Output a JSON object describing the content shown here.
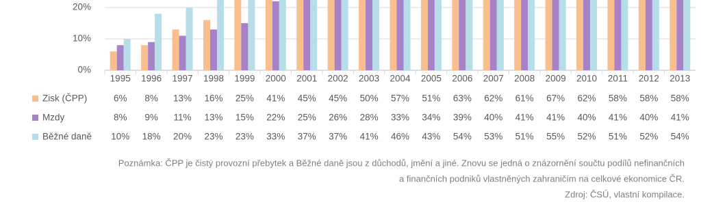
{
  "chart_data": {
    "type": "bar",
    "categories": [
      "1995",
      "1996",
      "1997",
      "1998",
      "1999",
      "2000",
      "2001",
      "2002",
      "2003",
      "2004",
      "2005",
      "2006",
      "2007",
      "2008",
      "2009",
      "2010",
      "2011",
      "2012",
      "2013"
    ],
    "series": [
      {
        "name": "Zisk (ČPP)",
        "color": "#f9bf8f",
        "values": [
          6,
          8,
          13,
          16,
          25,
          41,
          45,
          45,
          50,
          57,
          51,
          63,
          62,
          61,
          67,
          62,
          58,
          58,
          58
        ],
        "value_labels": [
          "6%",
          "8%",
          "13%",
          "16%",
          "25%",
          "41%",
          "45%",
          "45%",
          "50%",
          "57%",
          "51%",
          "63%",
          "62%",
          "61%",
          "67%",
          "62%",
          "58%",
          "58%",
          "58%"
        ]
      },
      {
        "name": "Mzdy",
        "color": "#a782c8",
        "values": [
          8,
          9,
          11,
          13,
          15,
          22,
          25,
          26,
          28,
          33,
          34,
          39,
          40,
          41,
          41,
          40,
          41,
          40,
          41
        ],
        "value_labels": [
          "8%",
          "9%",
          "11%",
          "13%",
          "15%",
          "22%",
          "25%",
          "26%",
          "28%",
          "33%",
          "34%",
          "39%",
          "40%",
          "41%",
          "41%",
          "40%",
          "41%",
          "40%",
          "41%"
        ]
      },
      {
        "name": "Běžné daně",
        "color": "#b7dde8",
        "values": [
          10,
          18,
          20,
          23,
          23,
          33,
          37,
          37,
          41,
          46,
          43,
          54,
          53,
          51,
          55,
          52,
          51,
          52,
          54
        ],
        "value_labels": [
          "10%",
          "18%",
          "20%",
          "23%",
          "23%",
          "33%",
          "37%",
          "37%",
          "41%",
          "46%",
          "43%",
          "54%",
          "53%",
          "51%",
          "55%",
          "52%",
          "51%",
          "52%",
          "54%"
        ]
      }
    ],
    "ylim": [
      0,
      22.4
    ],
    "yticks": [
      {
        "value": 0,
        "label": "0%"
      },
      {
        "value": 10,
        "label": "10%"
      },
      {
        "value": 20,
        "label": "20%"
      }
    ],
    "grid": true,
    "note": [
      "Poznámka: ČPP je čistý provozní přebytek a Běžné daně jsou z důchodů, jmění a jiné. Znovu se jedná o znázornění součtu podílů nefinančních",
      "a finančních podniků vlastněných zahraničím na celkové ekonomice ČR."
    ],
    "source": "Zdroj: ČSÚ, vlastní kompilace."
  }
}
